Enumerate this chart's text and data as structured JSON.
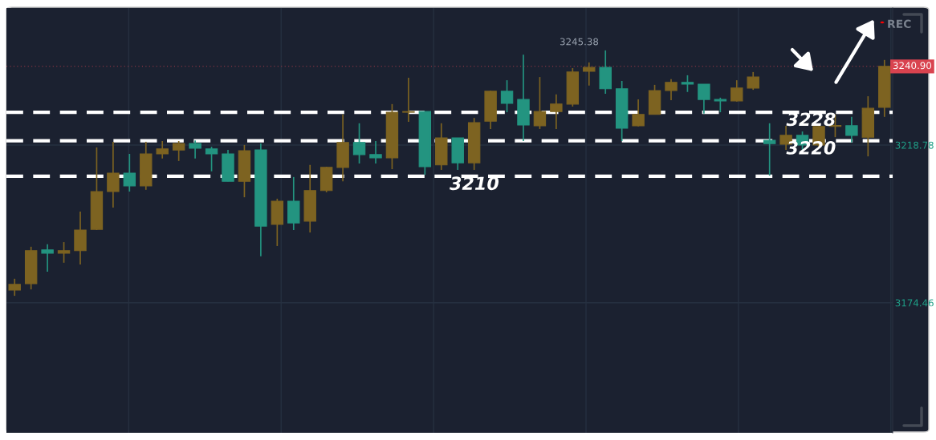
{
  "chart_data": {
    "type": "candlestick",
    "categories": [
      null,
      null,
      null,
      null,
      null,
      null,
      null,
      null,
      null,
      null,
      null,
      null,
      null,
      null,
      null,
      null,
      null,
      null,
      null,
      null,
      null,
      null,
      null,
      null,
      null,
      null,
      null,
      null,
      null,
      null,
      null,
      null,
      null,
      null,
      null,
      null,
      null,
      null,
      null,
      null,
      null,
      null,
      null,
      null,
      null,
      null,
      null,
      null,
      null,
      null,
      null,
      null,
      null,
      null
    ],
    "ohlc": [
      [
        3178.0,
        3181.2,
        3176.4,
        3179.6
      ],
      [
        3179.8,
        3190.2,
        3178.2,
        3189.1
      ],
      [
        3189.3,
        3190.9,
        3183.2,
        3188.4
      ],
      [
        3188.4,
        3191.5,
        3185.7,
        3189.1
      ],
      [
        3189.1,
        3200.1,
        3185.2,
        3194.9
      ],
      [
        3195.1,
        3218.1,
        3194.9,
        3205.7
      ],
      [
        3205.7,
        3219.7,
        3201.2,
        3210.9
      ],
      [
        3210.9,
        3216.3,
        3205.7,
        3207.3
      ],
      [
        3207.3,
        3219.7,
        3206.2,
        3216.3
      ],
      [
        3216.3,
        3219.9,
        3215.0,
        3217.7
      ],
      [
        3217.4,
        3219.9,
        3214.3,
        3219.2
      ],
      [
        3219.2,
        3220.1,
        3215.0,
        3217.9
      ],
      [
        3217.7,
        3218.3,
        3211.4,
        3216.3
      ],
      [
        3216.3,
        3217.4,
        3208.6,
        3208.6
      ],
      [
        3208.6,
        3218.8,
        3204.1,
        3217.2
      ],
      [
        3217.4,
        3219.2,
        3187.5,
        3196.0
      ],
      [
        3196.5,
        3203.7,
        3190.4,
        3203.0
      ],
      [
        3203.0,
        3209.8,
        3194.9,
        3196.9
      ],
      [
        3197.4,
        3213.2,
        3194.2,
        3206.0
      ],
      [
        3206.0,
        3212.7,
        3205.5,
        3212.5
      ],
      [
        3212.5,
        3227.4,
        3208.6,
        3219.5
      ],
      [
        3219.5,
        3224.9,
        3213.6,
        3216.1
      ],
      [
        3216.1,
        3219.9,
        3213.6,
        3215.2
      ],
      [
        3215.2,
        3230.3,
        3212.0,
        3228.0
      ],
      [
        3228.0,
        3237.7,
        3225.3,
        3228.2
      ],
      [
        3228.2,
        3228.2,
        3210.4,
        3212.7
      ],
      [
        3213.2,
        3224.9,
        3211.8,
        3220.8
      ],
      [
        3220.8,
        3220.8,
        3211.8,
        3213.8
      ],
      [
        3213.8,
        3226.4,
        3211.8,
        3225.1
      ],
      [
        3225.5,
        3234.1,
        3223.3,
        3233.9
      ],
      [
        3233.9,
        3237.0,
        3228.0,
        3230.5
      ],
      [
        3231.6,
        3244.2,
        3219.9,
        3224.4
      ],
      [
        3224.2,
        3237.9,
        3223.3,
        3228.2
      ],
      [
        3228.2,
        3233.0,
        3223.3,
        3230.3
      ],
      [
        3230.3,
        3240.4,
        3229.6,
        3239.3
      ],
      [
        3239.5,
        3242.0,
        3235.5,
        3240.6
      ],
      [
        3240.6,
        3245.38,
        3233.2,
        3234.6
      ],
      [
        3234.6,
        3236.8,
        3219.9,
        3223.5
      ],
      [
        3224.2,
        3231.6,
        3224.0,
        3227.4
      ],
      [
        3227.4,
        3235.7,
        3227.4,
        3234.1
      ],
      [
        3234.1,
        3237.3,
        3231.4,
        3236.4
      ],
      [
        3236.4,
        3238.4,
        3233.7,
        3235.9
      ],
      [
        3235.9,
        3235.9,
        3227.6,
        3231.6
      ],
      [
        3231.6,
        3232.1,
        3228.0,
        3231.2
      ],
      [
        3231.2,
        3237.0,
        3231.0,
        3234.8
      ],
      [
        3234.8,
        3239.3,
        3234.3,
        3237.9
      ],
      [
        3220.1,
        3224.9,
        3210.2,
        3219.2
      ],
      [
        3219.0,
        3224.2,
        3217.4,
        3221.5
      ],
      [
        3221.5,
        3222.6,
        3217.0,
        3218.8
      ],
      [
        3218.8,
        3224.6,
        3218.1,
        3224.0
      ],
      [
        3224.0,
        3227.4,
        3221.0,
        3224.3
      ],
      [
        3224.2,
        3226.7,
        3219.5,
        3221.5
      ],
      [
        3221.0,
        3232.5,
        3215.6,
        3229.1
      ],
      [
        3229.4,
        3242.7,
        3226.7,
        3240.9
      ]
    ],
    "colors": [
      "#7d6321",
      "#7d6321",
      "#239480",
      "#7d6321",
      "#7d6321",
      "#7d6321",
      "#7d6321",
      "#239480",
      "#7d6321",
      "#7d6321",
      "#7d6321",
      "#239480",
      "#239480",
      "#239480",
      "#7d6321",
      "#239480",
      "#7d6321",
      "#239480",
      "#7d6321",
      "#7d6321",
      "#7d6321",
      "#239480",
      "#239480",
      "#7d6321",
      "#7d6321",
      "#239480",
      "#7d6321",
      "#239480",
      "#7d6321",
      "#7d6321",
      "#239480",
      "#239480",
      "#7d6321",
      "#7d6321",
      "#7d6321",
      "#7d6321",
      "#239480",
      "#239480",
      "#7d6321",
      "#7d6321",
      "#7d6321",
      "#239480",
      "#239480",
      "#239480",
      "#7d6321",
      "#7d6321",
      "#239480",
      "#7d6321",
      "#239480",
      "#7d6321",
      "#7d6321",
      "#239480",
      "#7d6321",
      "#7d6321"
    ],
    "ylim": [
      3137.9,
      3257.3
    ],
    "yticks": [
      3218.78,
      3174.46
    ],
    "grid": true,
    "ref_lines": [
      {
        "axis": "y",
        "value": 3240.9,
        "label": "3240.90",
        "color": "#a33a48",
        "line_style": "dotted"
      },
      {
        "axis": "y",
        "value": 3228,
        "label": "3228",
        "color": "#ffffff",
        "line_style": "dashed"
      },
      {
        "axis": "y",
        "value": 3220,
        "label": "3220",
        "color": "#ffffff",
        "line_style": "dashed"
      },
      {
        "axis": "y",
        "value": 3210,
        "label": "3210",
        "color": "#ffffff",
        "line_style": "dashed"
      }
    ],
    "annotations": [
      "3245.38",
      "REC"
    ]
  }
}
